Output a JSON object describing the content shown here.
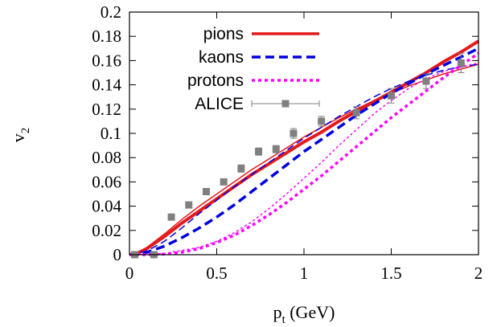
{
  "chart_data": {
    "type": "line",
    "xlabel_main": "p",
    "xlabel_sub": "t",
    "xlabel_unit": " (GeV)",
    "ylabel_main": "v",
    "ylabel_sub": "2",
    "xlim": [
      0,
      2
    ],
    "ylim": [
      0,
      0.2
    ],
    "xticks": [
      0,
      0.5,
      1,
      1.5,
      2
    ],
    "xtick_labels": [
      "0",
      "0.5",
      "1",
      "1.5",
      "2"
    ],
    "yticks": [
      0,
      0.02,
      0.04,
      0.06,
      0.08,
      0.1,
      0.12,
      0.14,
      0.16,
      0.18,
      0.2
    ],
    "ytick_labels": [
      "0",
      "0.02",
      "0.04",
      "0.06",
      "0.08",
      "0.1",
      "0.12",
      "0.14",
      "0.16",
      "0.18",
      "0.2"
    ],
    "grid": false,
    "legend_position": "top-left",
    "legend": [
      {
        "label": "pions",
        "color": "#e41a1c",
        "dash": "solid"
      },
      {
        "label": "kaons",
        "color": "#0000e0",
        "dash": "dashed"
      },
      {
        "label": "protons",
        "color": "#ff00ff",
        "dash": "dotted"
      },
      {
        "label": "ALICE",
        "color": "#808080",
        "dash": "errorbar"
      }
    ],
    "series": [
      {
        "name": "pions",
        "color": "#e41a1c",
        "dash": "solid",
        "width": 4,
        "x": [
          0,
          0.05,
          0.1,
          0.2,
          0.3,
          0.4,
          0.5,
          0.6,
          0.7,
          0.8,
          0.9,
          1.0,
          1.1,
          1.2,
          1.3,
          1.4,
          1.5,
          1.6,
          1.7,
          1.8,
          1.9,
          2.0
        ],
        "y": [
          0,
          0.0015,
          0.005,
          0.015,
          0.026,
          0.036,
          0.046,
          0.056,
          0.066,
          0.075,
          0.084,
          0.093,
          0.101,
          0.11,
          0.118,
          0.126,
          0.134,
          0.142,
          0.15,
          0.159,
          0.167,
          0.176
        ]
      },
      {
        "name": "",
        "color": "#e41a1c",
        "dash": "solid",
        "width": 1.5,
        "x": [
          0,
          0.05,
          0.1,
          0.2,
          0.3,
          0.4,
          0.5,
          0.6,
          0.7,
          0.8,
          0.9,
          1.0,
          1.1,
          1.2,
          1.3,
          1.4,
          1.5,
          1.6,
          1.7,
          1.8,
          1.9,
          2.0
        ],
        "y": [
          0,
          0.002,
          0.006,
          0.017,
          0.029,
          0.04,
          0.05,
          0.06,
          0.07,
          0.079,
          0.088,
          0.097,
          0.105,
          0.113,
          0.12,
          0.127,
          0.133,
          0.139,
          0.144,
          0.149,
          0.153,
          0.157
        ]
      },
      {
        "name": "kaons",
        "color": "#0000e0",
        "dash": "dashed",
        "width": 3.5,
        "x": [
          0,
          0.1,
          0.2,
          0.3,
          0.4,
          0.5,
          0.6,
          0.7,
          0.8,
          0.9,
          1.0,
          1.1,
          1.2,
          1.3,
          1.4,
          1.5,
          1.6,
          1.7,
          1.8,
          1.9,
          2.0
        ],
        "y": [
          0,
          0.002,
          0.007,
          0.014,
          0.022,
          0.031,
          0.041,
          0.052,
          0.063,
          0.074,
          0.085,
          0.095,
          0.105,
          0.115,
          0.124,
          0.133,
          0.141,
          0.149,
          0.156,
          0.163,
          0.17
        ]
      },
      {
        "name": "",
        "color": "#0000e0",
        "dash": "dashed",
        "width": 1.5,
        "x": [
          0,
          0.1,
          0.2,
          0.3,
          0.4,
          0.5,
          0.6,
          0.7,
          0.8,
          0.9,
          1.0,
          1.1,
          1.2,
          1.3,
          1.4,
          1.5,
          1.6,
          1.7,
          1.8,
          1.9,
          2.0
        ],
        "y": [
          0,
          0.003,
          0.011,
          0.022,
          0.034,
          0.045,
          0.056,
          0.066,
          0.076,
          0.086,
          0.096,
          0.105,
          0.114,
          0.122,
          0.13,
          0.137,
          0.143,
          0.148,
          0.152,
          0.155,
          0.157
        ]
      },
      {
        "name": "protons",
        "color": "#ff00ff",
        "dash": "dotted",
        "width": 3.5,
        "x": [
          0,
          0.1,
          0.2,
          0.3,
          0.4,
          0.5,
          0.6,
          0.7,
          0.8,
          0.9,
          1.0,
          1.1,
          1.2,
          1.3,
          1.4,
          1.5,
          1.6,
          1.7,
          1.8,
          1.9,
          2.0
        ],
        "y": [
          0,
          0.0,
          0.0005,
          0.002,
          0.005,
          0.01,
          0.016,
          0.024,
          0.033,
          0.043,
          0.054,
          0.065,
          0.077,
          0.089,
          0.101,
          0.113,
          0.124,
          0.135,
          0.146,
          0.156,
          0.166
        ]
      },
      {
        "name": "",
        "color": "#ff00ff",
        "dash": "dotted",
        "width": 1.5,
        "x": [
          0,
          0.2,
          0.4,
          0.5,
          0.6,
          0.7,
          0.8,
          0.9,
          1.0,
          1.1,
          1.2,
          1.3,
          1.4,
          1.5,
          1.6,
          1.7,
          1.8,
          1.9,
          2.0
        ],
        "y": [
          0,
          0.001,
          0.006,
          0.011,
          0.018,
          0.027,
          0.038,
          0.05,
          0.063,
          0.076,
          0.09,
          0.103,
          0.116,
          0.127,
          0.137,
          0.145,
          0.151,
          0.155,
          0.158
        ]
      }
    ],
    "points": {
      "name": "ALICE",
      "color": "#808080",
      "x": [
        0.03,
        0.14,
        0.24,
        0.34,
        0.44,
        0.54,
        0.64,
        0.74,
        0.84,
        0.94,
        1.1,
        1.3,
        1.5,
        1.7,
        1.9
      ],
      "y": [
        0.0,
        0.0,
        0.031,
        0.041,
        0.052,
        0.06,
        0.071,
        0.085,
        0.087,
        0.1,
        0.11,
        0.117,
        0.131,
        0.143,
        0.158
      ],
      "yerr": [
        0.001,
        0.001,
        0.002,
        0.002,
        0.002,
        0.002,
        0.003,
        0.003,
        0.003,
        0.004,
        0.004,
        0.005,
        0.006,
        0.006,
        0.008
      ]
    }
  }
}
